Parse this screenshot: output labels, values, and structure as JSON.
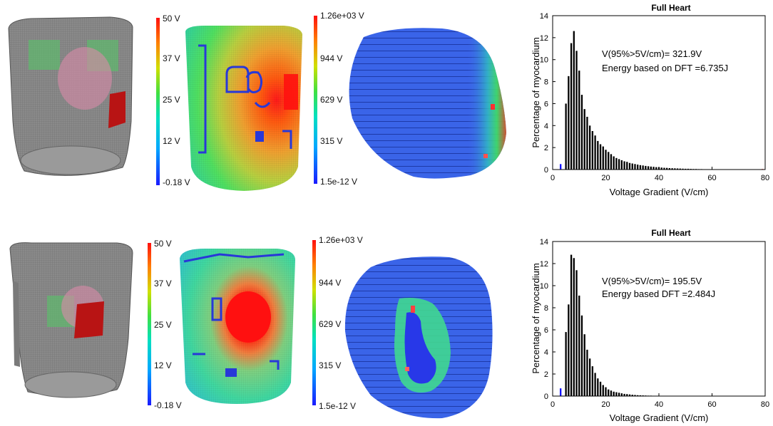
{
  "panels": [
    {
      "potential_colorbar": {
        "ticks": [
          "50 V",
          "37 V",
          "25 V",
          "12 V",
          "-0.18 V"
        ]
      },
      "gradient_colorbar": {
        "ticks": [
          "1.26e+03 V",
          "944 V",
          "629 V",
          "315 V",
          "1.5e-12 V"
        ]
      },
      "histogram_annotation": [
        "V(95%>5V/cm)= 321.9V",
        "Energy based on DFT =6.735J"
      ]
    },
    {
      "potential_colorbar": {
        "ticks": [
          "50 V",
          "37 V",
          "25 V",
          "12 V",
          "-0.18 V"
        ]
      },
      "gradient_colorbar": {
        "ticks": [
          "1.26e+03 V",
          "944 V",
          "629 V",
          "315 V",
          "1.5e-12 V"
        ]
      },
      "histogram_annotation": [
        "V(95%>5V/cm)= 195.5V",
        "Energy based DFT =2.484J"
      ]
    }
  ],
  "chart_data": [
    {
      "type": "bar",
      "title": "Full Heart",
      "xlabel": "Voltage Gradient (V/cm)",
      "ylabel": "Percentage of myocardium",
      "xlim": [
        0,
        80
      ],
      "ylim": [
        0,
        14
      ],
      "xticks": [
        0,
        20,
        40,
        60,
        80
      ],
      "yticks": [
        0,
        2,
        4,
        6,
        8,
        10,
        12,
        14
      ],
      "grid": false,
      "x": [
        3,
        4,
        5,
        6,
        7,
        8,
        9,
        10,
        11,
        12,
        13,
        14,
        15,
        16,
        17,
        18,
        19,
        20,
        21,
        22,
        23,
        24,
        25,
        26,
        27,
        28,
        29,
        30,
        31,
        32,
        33,
        34,
        35,
        36,
        37,
        38,
        39,
        40,
        41,
        42,
        43,
        44,
        45,
        46,
        47,
        48,
        49,
        50,
        51,
        52,
        53,
        54,
        55,
        56,
        57,
        58,
        59,
        60,
        61,
        62,
        63,
        64,
        65,
        66,
        67,
        68,
        69,
        70,
        71,
        72,
        73,
        74,
        75,
        76,
        77,
        78,
        79
      ],
      "values": [
        0.5,
        0,
        6,
        8.5,
        11.5,
        12.6,
        10.8,
        9,
        6.8,
        5.5,
        4.8,
        4,
        3.5,
        3.1,
        2.6,
        2.3,
        2.1,
        1.8,
        1.6,
        1.4,
        1.2,
        1.05,
        0.95,
        0.85,
        0.75,
        0.7,
        0.6,
        0.55,
        0.5,
        0.45,
        0.4,
        0.37,
        0.33,
        0.3,
        0.27,
        0.25,
        0.22,
        0.2,
        0.18,
        0.16,
        0.15,
        0.13,
        0.12,
        0.11,
        0.1,
        0.09,
        0.08,
        0.07,
        0.07,
        0.06,
        0.05,
        0.05,
        0.04,
        0.04,
        0.03,
        0.03,
        0.03,
        0.02,
        0.02,
        0.02,
        0.02,
        0.02,
        0.01,
        0.01,
        0.01,
        0.01,
        0.01,
        0.01,
        0.01,
        0.01,
        0.01,
        0.01,
        0.01,
        0.01,
        0.01,
        0.01,
        0.05
      ],
      "bar_colors": {
        "first": "#1010ff",
        "default": "#000000",
        "last": "#ff2020"
      }
    },
    {
      "type": "bar",
      "title": "Full Heart",
      "xlabel": "Voltage Gradient (V/cm)",
      "ylabel": "Percentage of myocardium",
      "xlim": [
        0,
        80
      ],
      "ylim": [
        0,
        14
      ],
      "xticks": [
        0,
        20,
        40,
        60,
        80
      ],
      "yticks": [
        0,
        2,
        4,
        6,
        8,
        10,
        12,
        14
      ],
      "grid": false,
      "x": [
        3,
        4,
        5,
        6,
        7,
        8,
        9,
        10,
        11,
        12,
        13,
        14,
        15,
        16,
        17,
        18,
        19,
        20,
        21,
        22,
        23,
        24,
        25,
        26,
        27,
        28,
        29,
        30,
        31,
        32,
        33,
        34,
        35,
        36,
        37,
        38,
        39,
        40,
        41,
        42,
        43,
        44,
        45,
        46,
        47,
        48
      ],
      "values": [
        0.7,
        0,
        5.8,
        8.3,
        12.8,
        12.5,
        11.4,
        9.1,
        7.3,
        5.6,
        4.2,
        3.4,
        2.7,
        2.1,
        1.6,
        1.3,
        1,
        0.8,
        0.6,
        0.5,
        0.4,
        0.35,
        0.3,
        0.25,
        0.2,
        0.18,
        0.15,
        0.12,
        0.1,
        0.08,
        0.07,
        0.06,
        0.05,
        0.04,
        0.04,
        0.03,
        0.03,
        0.02,
        0.02,
        0.02,
        0.01,
        0.01,
        0.01,
        0.01,
        0.01,
        0.01
      ],
      "bar_colors": {
        "first": "#1010ff",
        "default": "#000000",
        "last": "#000000"
      }
    }
  ]
}
